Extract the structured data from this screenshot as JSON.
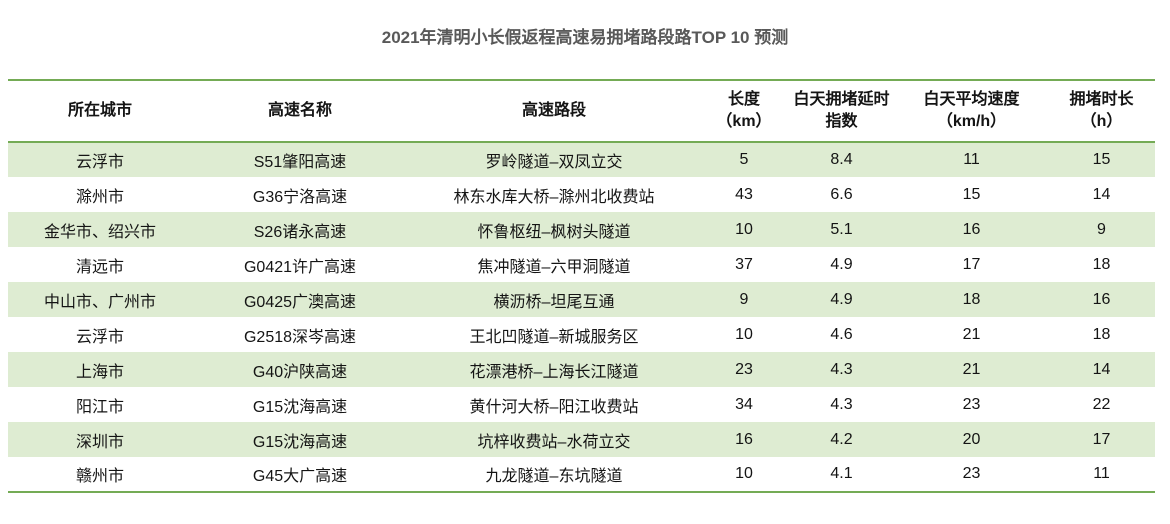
{
  "title": "2021年清明小长假返程高速易拥堵路段路TOP 10 预测",
  "colors": {
    "accent_green_border": "#74ab55",
    "row_alt_green": "#deecd2",
    "title_gray": "#595959",
    "text_black": "#141414"
  },
  "chart_data": {
    "type": "table",
    "title": "2021年清明小长假返程高速易拥堵路段路TOP 10 预测",
    "columns": [
      {
        "id": "city",
        "lines": [
          "所在城市"
        ]
      },
      {
        "id": "highway-name",
        "lines": [
          "高速名称"
        ]
      },
      {
        "id": "highway-section",
        "lines": [
          "高速路段"
        ]
      },
      {
        "id": "length-km",
        "lines": [
          "长度",
          "（km）"
        ]
      },
      {
        "id": "daytime-delay-index",
        "lines": [
          "白天拥堵延时",
          "指数"
        ]
      },
      {
        "id": "daytime-avg-speed",
        "lines": [
          "白天平均速度",
          "（km/h）"
        ]
      },
      {
        "id": "congestion-duration-h",
        "lines": [
          "拥堵时长",
          "（h）"
        ]
      }
    ],
    "rows": [
      [
        "云浮市",
        "S51肇阳高速",
        "罗岭隧道–双凤立交",
        "5",
        "8.4",
        "11",
        "15"
      ],
      [
        "滁州市",
        "G36宁洛高速",
        "林东水库大桥–滁州北收费站",
        "43",
        "6.6",
        "15",
        "14"
      ],
      [
        "金华市、绍兴市",
        "S26诸永高速",
        "怀鲁枢纽–枫树头隧道",
        "10",
        "5.1",
        "16",
        "9"
      ],
      [
        "清远市",
        "G0421许广高速",
        "焦冲隧道–六甲洞隧道",
        "37",
        "4.9",
        "17",
        "18"
      ],
      [
        "中山市、广州市",
        "G0425广澳高速",
        "横沥桥–坦尾互通",
        "9",
        "4.9",
        "18",
        "16"
      ],
      [
        "云浮市",
        "G2518深岑高速",
        "王北凹隧道–新城服务区",
        "10",
        "4.6",
        "21",
        "18"
      ],
      [
        "上海市",
        "G40沪陕高速",
        "花漂港桥–上海长江隧道",
        "23",
        "4.3",
        "21",
        "14"
      ],
      [
        "阳江市",
        "G15沈海高速",
        "黄什河大桥–阳江收费站",
        "34",
        "4.3",
        "23",
        "22"
      ],
      [
        "深圳市",
        "G15沈海高速",
        "坑梓收费站–水荷立交",
        "16",
        "4.2",
        "20",
        "17"
      ],
      [
        "赣州市",
        "G45大广高速",
        "九龙隧道–东坑隧道",
        "10",
        "4.1",
        "23",
        "11"
      ]
    ]
  }
}
